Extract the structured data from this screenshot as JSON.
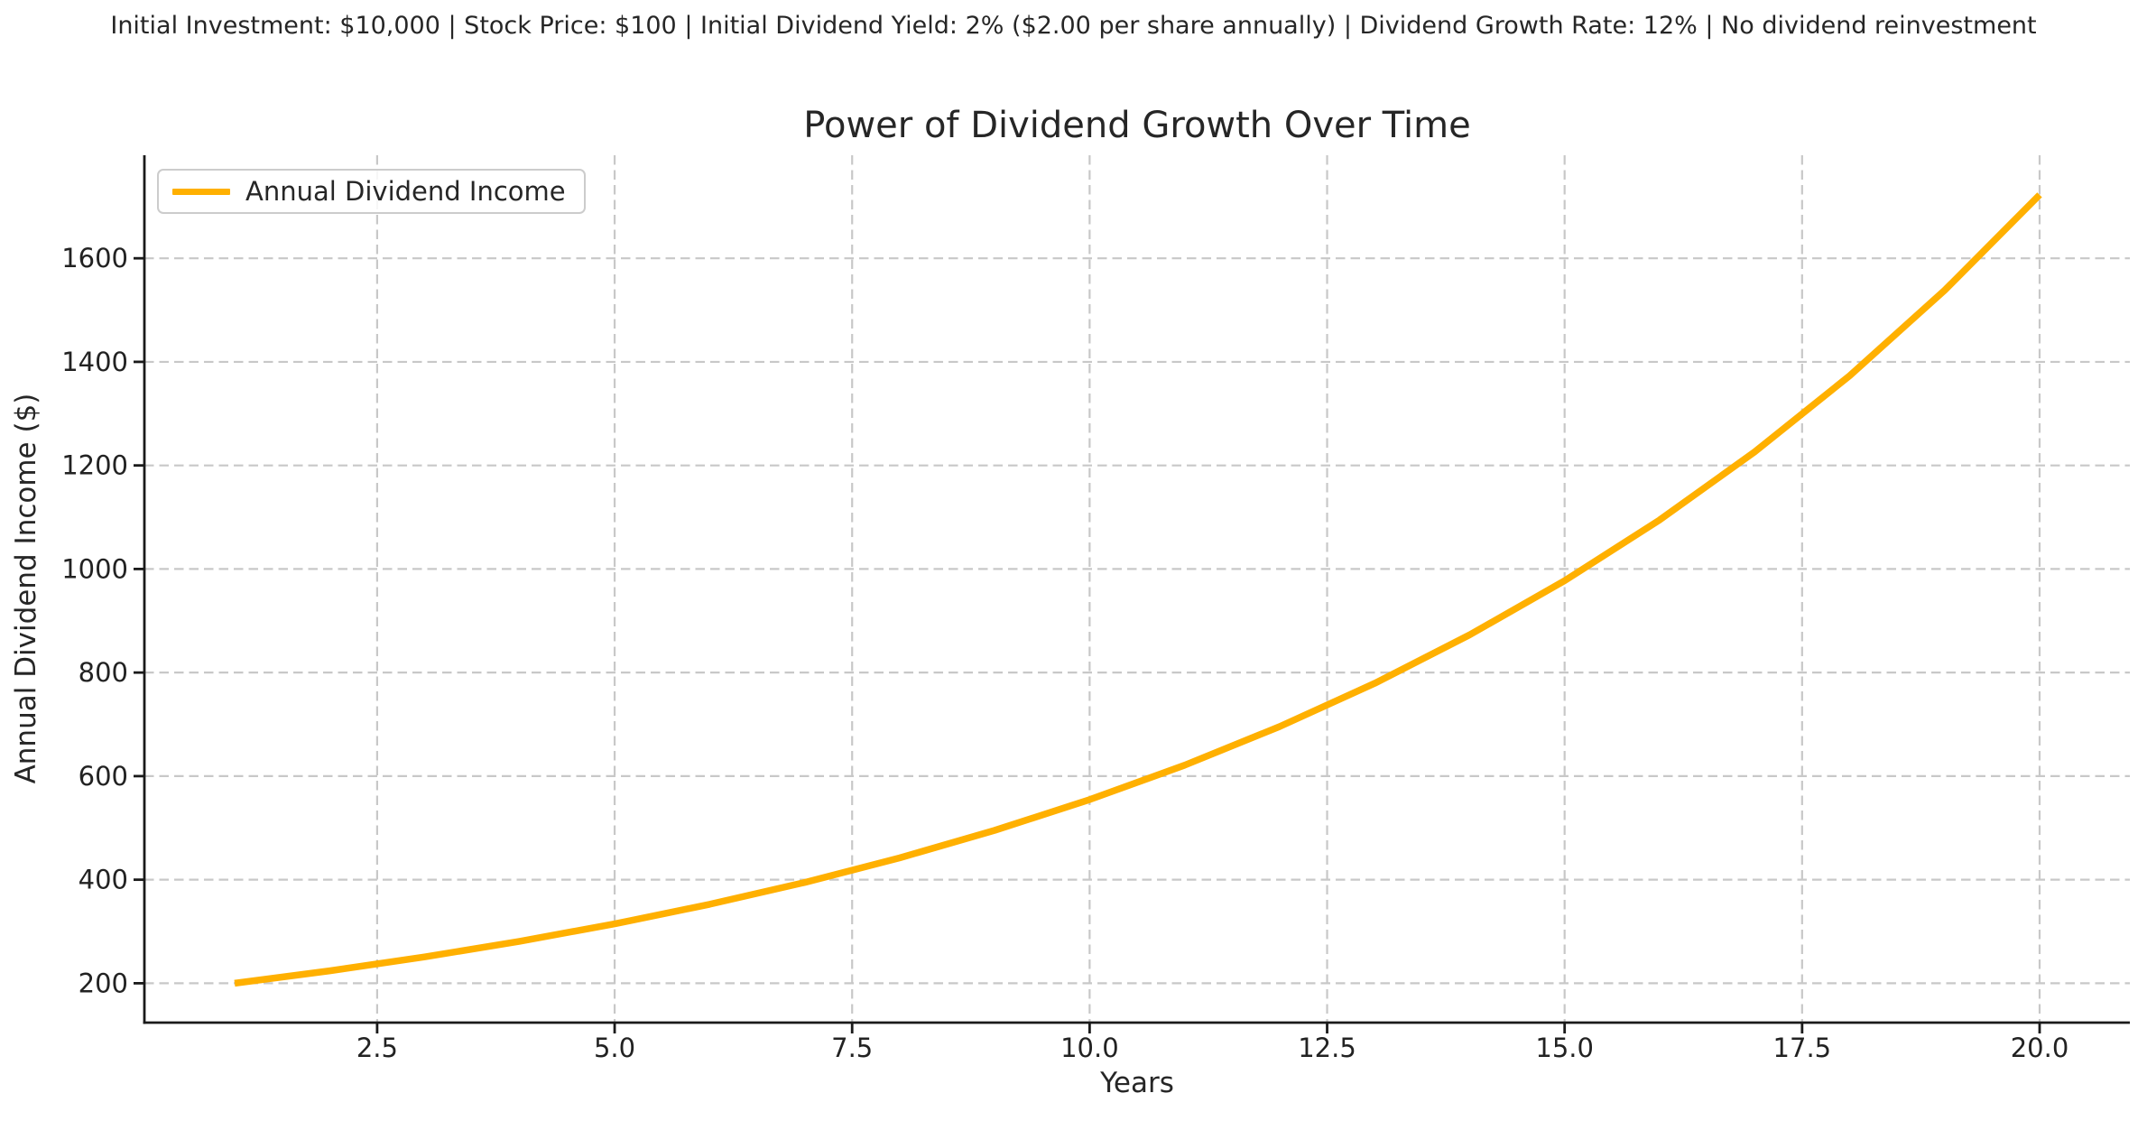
{
  "header": {
    "subtitle": "Initial Investment: $10,000 | Stock Price: $100 | Initial Dividend Yield: 2% ($2.00 per share annually) | Dividend Growth Rate: 12% | No dividend reinvestment"
  },
  "colors": {
    "line": "#FFB000",
    "grid": "#c8c8c8",
    "axis": "#1a1a1a",
    "text": "#222222",
    "legend_border": "#cccccc",
    "background": "#ffffff"
  },
  "chart_data": {
    "type": "line",
    "title": "Power of Dividend Growth Over Time",
    "xlabel": "Years",
    "ylabel": "Annual Dividend Income ($)",
    "x": [
      1,
      2,
      3,
      4,
      5,
      6,
      7,
      8,
      9,
      10,
      11,
      12,
      13,
      14,
      15,
      16,
      17,
      18,
      19,
      20
    ],
    "series": [
      {
        "name": "Annual Dividend Income",
        "color": "#FFB000",
        "values": [
          200.0,
          224.0,
          250.88,
          280.99,
          314.7,
          352.47,
          394.76,
          442.14,
          495.19,
          554.61,
          621.17,
          695.71,
          779.19,
          872.7,
          977.42,
          1094.71,
          1226.08,
          1373.2,
          1537.99,
          1722.55
        ]
      }
    ],
    "xticks": [
      2.5,
      5.0,
      7.5,
      10.0,
      12.5,
      15.0,
      17.5,
      20.0
    ],
    "xtick_labels": [
      "2.5",
      "5.0",
      "7.5",
      "10.0",
      "12.5",
      "15.0",
      "17.5",
      "20.0"
    ],
    "yticks": [
      200,
      400,
      600,
      800,
      1000,
      1200,
      1400,
      1600
    ],
    "ytick_labels": [
      "200",
      "400",
      "600",
      "800",
      "1000",
      "1200",
      "1400",
      "1600"
    ],
    "xlim": [
      0.05,
      20.95
    ],
    "ylim": [
      124,
      1799
    ],
    "grid": "dashed",
    "legend_position": "upper left"
  }
}
